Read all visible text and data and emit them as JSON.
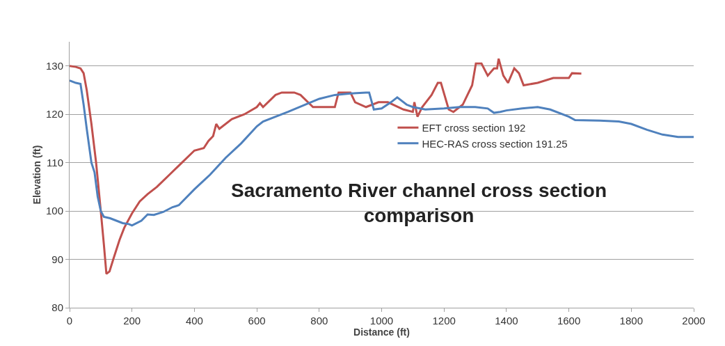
{
  "chart_data": {
    "type": "line",
    "title": "Sacramento River channel cross section comparison",
    "xlabel": "Distance (ft)",
    "ylabel": "Elevation (ft)",
    "xlim": [
      0,
      2000
    ],
    "xticks": [
      0,
      200,
      400,
      600,
      800,
      1000,
      1200,
      1400,
      1600,
      1800,
      2000
    ],
    "ylim": [
      80,
      135
    ],
    "yticks": [
      80,
      90,
      100,
      110,
      120,
      130
    ],
    "grid": "y",
    "legend": "right",
    "marker": "none",
    "line_style": "solid",
    "series": [
      {
        "name": "EFT cross section 192",
        "color": "#c0504d",
        "x": [
          0,
          20,
          35,
          45,
          55,
          70,
          85,
          100,
          110,
          118,
          128,
          140,
          160,
          175,
          200,
          225,
          250,
          280,
          320,
          360,
          400,
          430,
          445,
          460,
          470,
          480,
          520,
          560,
          600,
          610,
          620,
          660,
          680,
          720,
          740,
          780,
          850,
          862,
          900,
          915,
          950,
          990,
          1020,
          1070,
          1100,
          1105,
          1115,
          1130,
          1160,
          1180,
          1190,
          1215,
          1230,
          1260,
          1290,
          1302,
          1320,
          1340,
          1360,
          1370,
          1375,
          1390,
          1405,
          1425,
          1440,
          1455,
          1500,
          1550,
          1600,
          1610,
          1640
        ],
        "values": [
          130,
          129.8,
          129.5,
          128.5,
          125,
          118,
          110,
          100,
          93,
          87,
          87.5,
          90,
          94,
          96.5,
          99.5,
          102,
          103.5,
          105,
          107.5,
          110,
          112.5,
          113,
          114.5,
          115.5,
          118,
          117,
          119,
          120,
          121.5,
          122.3,
          121.5,
          124,
          124.5,
          124.5,
          124,
          121.5,
          121.5,
          124.5,
          124.5,
          122.5,
          121.5,
          122.5,
          122.5,
          121,
          120.5,
          122.5,
          119.5,
          121.5,
          124,
          126.5,
          126.5,
          121,
          120.5,
          122,
          126,
          130.5,
          130.5,
          128,
          129.5,
          129.5,
          131.5,
          128,
          126.5,
          129.5,
          128.5,
          126,
          126.5,
          127.5,
          127.5,
          128.5,
          128.4
        ]
      },
      {
        "name": "HEC-RAS cross section 191.25",
        "color": "#4f81bd",
        "x": [
          0,
          20,
          35,
          45,
          55,
          70,
          80,
          90,
          100,
          110,
          130,
          150,
          170,
          190,
          200,
          230,
          250,
          270,
          300,
          330,
          350,
          400,
          450,
          500,
          550,
          600,
          620,
          700,
          800,
          850,
          900,
          950,
          960,
          975,
          1000,
          1030,
          1050,
          1080,
          1100,
          1140,
          1200,
          1250,
          1300,
          1340,
          1360,
          1380,
          1400,
          1450,
          1500,
          1540,
          1600,
          1620,
          1700,
          1760,
          1800,
          1850,
          1900,
          1950,
          2000
        ],
        "values": [
          127,
          126.5,
          126.3,
          122,
          117,
          110,
          108,
          103,
          100,
          98.8,
          98.5,
          98,
          97.5,
          97.3,
          97,
          98,
          99.3,
          99.2,
          99.8,
          100.8,
          101.2,
          104.5,
          107.5,
          111,
          114,
          117.5,
          118.5,
          120.5,
          123.2,
          124,
          124.3,
          124.5,
          124.5,
          121,
          121.2,
          122.5,
          123.5,
          122,
          121.5,
          121,
          121.2,
          121.5,
          121.5,
          121.2,
          120.3,
          120.5,
          120.8,
          121.2,
          121.5,
          121,
          119.5,
          118.8,
          118.7,
          118.5,
          118,
          116.8,
          115.8,
          115.3,
          115.3
        ]
      }
    ]
  }
}
